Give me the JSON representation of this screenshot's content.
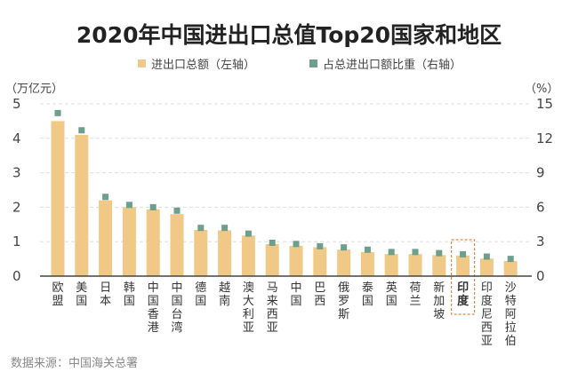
{
  "colors": {
    "bar": "#F0C987",
    "marker": "#6E9E8C",
    "highlight": "#D98A4A",
    "axis": "#444444",
    "grid": "#DDDDDD"
  },
  "source": "数据来源：中国海关总署",
  "chart_data": {
    "type": "bar",
    "title": "2020年中国进出口总值Top20国家和地区",
    "categories": [
      "欧盟",
      "美国",
      "日本",
      "韩国",
      "中国香港",
      "中国台湾",
      "德国",
      "越南",
      "澳大利亚",
      "马来西亚",
      "中国",
      "巴西",
      "俄罗斯",
      "泰国",
      "英国",
      "荷兰",
      "新加坡",
      "印度",
      "印度尼西亚",
      "沙特阿拉伯"
    ],
    "highlight": "印度",
    "series": [
      {
        "name": "进出口总额（左轴）",
        "type": "bar",
        "axis": "left",
        "values": [
          4.5,
          4.1,
          2.2,
          2.0,
          1.94,
          1.8,
          1.34,
          1.33,
          1.18,
          0.93,
          0.88,
          0.84,
          0.77,
          0.7,
          0.64,
          0.64,
          0.61,
          0.6,
          0.51,
          0.44
        ]
      },
      {
        "name": "占总进出口额比重（右轴）",
        "type": "scatter",
        "axis": "right",
        "values": [
          14.2,
          12.7,
          6.9,
          6.2,
          6.0,
          5.7,
          4.2,
          4.2,
          3.7,
          2.9,
          2.8,
          2.6,
          2.5,
          2.3,
          2.1,
          2.1,
          2.0,
          1.9,
          1.7,
          1.5
        ]
      }
    ],
    "ylabel_left": "（万亿元）",
    "ylabel_right": "（%）",
    "ylim_left": [
      0,
      5
    ],
    "ylim_right": [
      0,
      15
    ],
    "yticks_left": [
      "0",
      "1",
      "2",
      "3",
      "4",
      "5"
    ],
    "yticks_right": [
      "0",
      "3",
      "6",
      "9",
      "12",
      "15"
    ],
    "grid": true,
    "legend": "top-center"
  }
}
